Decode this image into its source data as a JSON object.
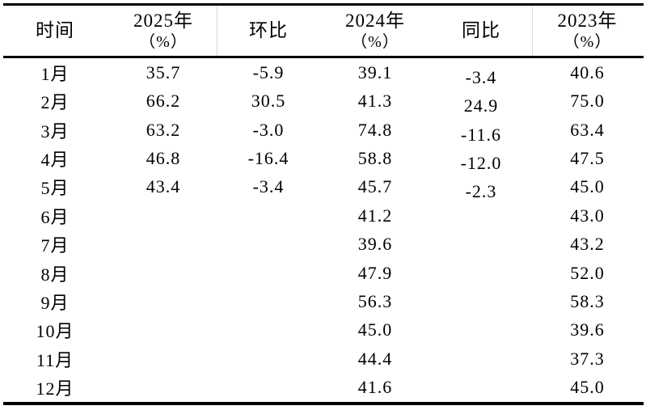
{
  "table": {
    "columns": [
      {
        "label": "时间",
        "sub": ""
      },
      {
        "label": "2025年",
        "sub": "（%）"
      },
      {
        "label": "环比",
        "sub": ""
      },
      {
        "label": "2024年",
        "sub": "（%）"
      },
      {
        "label": "同比",
        "sub": ""
      },
      {
        "label": "2023年",
        "sub": "（%）"
      }
    ],
    "rows": [
      {
        "month": "1月",
        "y2025": "35.7",
        "mom": "-5.9",
        "y2024": "39.1",
        "yoy": "-3.4",
        "y2023": "40.6"
      },
      {
        "month": "2月",
        "y2025": "66.2",
        "mom": "30.5",
        "y2024": "41.3",
        "yoy": "24.9",
        "y2023": "75.0"
      },
      {
        "month": "3月",
        "y2025": "63.2",
        "mom": "-3.0",
        "y2024": "74.8",
        "yoy": "-11.6",
        "y2023": "63.4"
      },
      {
        "month": "4月",
        "y2025": "46.8",
        "mom": "-16.4",
        "y2024": "58.8",
        "yoy": "-12.0",
        "y2023": "47.5"
      },
      {
        "month": "5月",
        "y2025": "43.4",
        "mom": "-3.4",
        "y2024": "45.7",
        "yoy": "-2.3",
        "y2023": "45.0"
      },
      {
        "month": "6月",
        "y2025": "",
        "mom": "",
        "y2024": "41.2",
        "yoy": "",
        "y2023": "43.0"
      },
      {
        "month": "7月",
        "y2025": "",
        "mom": "",
        "y2024": "39.6",
        "yoy": "",
        "y2023": "43.2"
      },
      {
        "month": "8月",
        "y2025": "",
        "mom": "",
        "y2024": "47.9",
        "yoy": "",
        "y2023": "52.0"
      },
      {
        "month": "9月",
        "y2025": "",
        "mom": "",
        "y2024": "56.3",
        "yoy": "",
        "y2023": "58.3"
      },
      {
        "month": "10月",
        "y2025": "",
        "mom": "",
        "y2024": "45.0",
        "yoy": "",
        "y2023": "39.6"
      },
      {
        "month": "11月",
        "y2025": "",
        "mom": "",
        "y2024": "44.4",
        "yoy": "",
        "y2023": "37.3"
      },
      {
        "month": "12月",
        "y2025": "",
        "mom": "",
        "y2024": "41.6",
        "yoy": "",
        "y2023": "45.0"
      }
    ]
  },
  "chart_data": {
    "type": "table",
    "title": "",
    "columns": [
      "时间",
      "2025年（%）",
      "环比",
      "2024年（%）",
      "同比",
      "2023年（%）"
    ],
    "rows": [
      [
        "1月",
        35.7,
        -5.9,
        39.1,
        -3.4,
        40.6
      ],
      [
        "2月",
        66.2,
        30.5,
        41.3,
        24.9,
        75.0
      ],
      [
        "3月",
        63.2,
        -3.0,
        74.8,
        -11.6,
        63.4
      ],
      [
        "4月",
        46.8,
        -16.4,
        58.8,
        -12.0,
        47.5
      ],
      [
        "5月",
        43.4,
        -3.4,
        45.7,
        -2.3,
        45.0
      ],
      [
        "6月",
        null,
        null,
        41.2,
        null,
        43.0
      ],
      [
        "7月",
        null,
        null,
        39.6,
        null,
        43.2
      ],
      [
        "8月",
        null,
        null,
        47.9,
        null,
        52.0
      ],
      [
        "9月",
        null,
        null,
        56.3,
        null,
        58.3
      ],
      [
        "10月",
        null,
        null,
        45.0,
        null,
        39.6
      ],
      [
        "11月",
        null,
        null,
        44.4,
        null,
        37.3
      ],
      [
        "12月",
        null,
        null,
        41.6,
        null,
        45.0
      ]
    ],
    "layout_hints": {
      "header_rules_color": "#000000",
      "header_column_divider_color": "#d9d9d9",
      "background": "#ffffff",
      "text_color": "#000000"
    }
  }
}
